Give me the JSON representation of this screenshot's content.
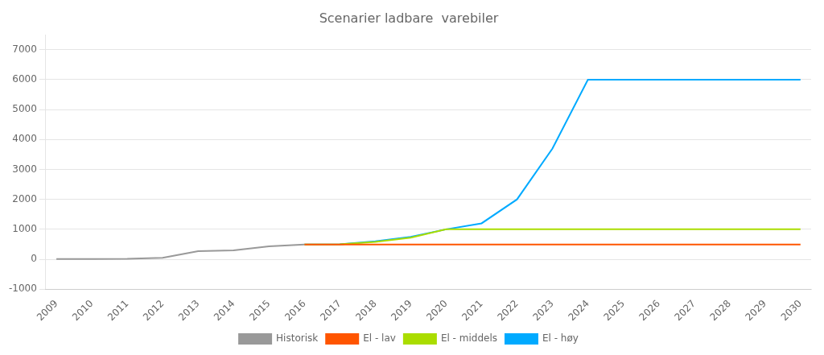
{
  "chart_data": {
    "type": "line",
    "title": "Scenarier ladbare  varebiler",
    "series": [
      {
        "name": "Historisk",
        "color": "#999999",
        "x": [
          2009,
          2010,
          2011,
          2012,
          2013,
          2014,
          2015,
          2016
        ],
        "values": [
          5,
          10,
          15,
          50,
          270,
          300,
          430,
          490
        ]
      },
      {
        "name": "El - lav",
        "color": "#ff5500",
        "x": [
          2016,
          2017,
          2018,
          2019,
          2020,
          2021,
          2022,
          2023,
          2024,
          2025,
          2026,
          2027,
          2028,
          2029,
          2030
        ],
        "values": [
          490,
          490,
          490,
          490,
          490,
          490,
          490,
          490,
          490,
          490,
          490,
          490,
          490,
          490,
          490
        ]
      },
      {
        "name": "El - middels",
        "color": "#aadd00",
        "x": [
          2016,
          2017,
          2018,
          2019,
          2020,
          2021,
          2022,
          2023,
          2024,
          2025,
          2026,
          2027,
          2028,
          2029,
          2030
        ],
        "values": [
          490,
          500,
          580,
          720,
          1000,
          1000,
          1000,
          1000,
          1000,
          1000,
          1000,
          1000,
          1000,
          1000,
          1000
        ]
      },
      {
        "name": "El - høy",
        "color": "#00aaff",
        "x": [
          2016,
          2017,
          2018,
          2019,
          2020,
          2021,
          2022,
          2023,
          2024,
          2025,
          2026,
          2027,
          2028,
          2029,
          2030
        ],
        "values": [
          490,
          500,
          600,
          750,
          1000,
          1200,
          2000,
          3700,
          6000,
          6000,
          6000,
          6000,
          6000,
          6000,
          6000
        ]
      }
    ],
    "xlim": [
      2008.7,
      2030.3
    ],
    "xticks": [
      2009,
      2010,
      2011,
      2012,
      2013,
      2014,
      2015,
      2016,
      2017,
      2018,
      2019,
      2020,
      2021,
      2022,
      2023,
      2024,
      2025,
      2026,
      2027,
      2028,
      2029,
      2030
    ],
    "ylim": [
      -1000,
      7500
    ],
    "yticks": [
      -1000,
      0,
      1000,
      2000,
      3000,
      4000,
      5000,
      6000,
      7000
    ],
    "grid": "y",
    "legend": "bottom"
  }
}
